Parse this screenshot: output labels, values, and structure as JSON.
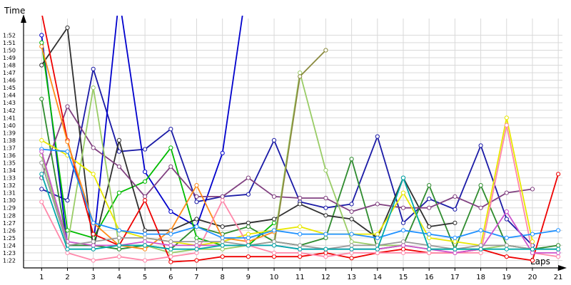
{
  "chart_data": {
    "type": "line",
    "xlabel": "Laps",
    "ylabel": "Time",
    "xlim": [
      0.3,
      21.3
    ],
    "ylim": [
      81.0,
      114.6
    ],
    "grid": true,
    "x_ticks": [
      "1",
      "2",
      "3",
      "4",
      "5",
      "6",
      "7",
      "8",
      "9",
      "10",
      "11",
      "12",
      "13",
      "14",
      "15",
      "16",
      "17",
      "18",
      "19",
      "20",
      "21"
    ],
    "y_ticks": [
      {
        "v": 82,
        "label": "1:22"
      },
      {
        "v": 83,
        "label": "1:23"
      },
      {
        "v": 84,
        "label": "1:24"
      },
      {
        "v": 85,
        "label": "1:25"
      },
      {
        "v": 86,
        "label": "1:26"
      },
      {
        "v": 87,
        "label": "1:27"
      },
      {
        "v": 88,
        "label": "1:28"
      },
      {
        "v": 89,
        "label": "1:29"
      },
      {
        "v": 90,
        "label": "1:30"
      },
      {
        "v": 91,
        "label": "1:31"
      },
      {
        "v": 92,
        "label": "1:32"
      },
      {
        "v": 93,
        "label": "1:33"
      },
      {
        "v": 94,
        "label": "1:34"
      },
      {
        "v": 95,
        "label": "1:35"
      },
      {
        "v": 96,
        "label": "1:36"
      },
      {
        "v": 97,
        "label": "1:37"
      },
      {
        "v": 98,
        "label": "1:38"
      },
      {
        "v": 99,
        "label": "1:39"
      },
      {
        "v": 100,
        "label": "1:40"
      },
      {
        "v": 101,
        "label": "1:41"
      },
      {
        "v": 102,
        "label": "1:42"
      },
      {
        "v": 103,
        "label": "1:43"
      },
      {
        "v": 104,
        "label": "1:44"
      },
      {
        "v": 105,
        "label": "1:45"
      },
      {
        "v": 106,
        "label": "1:46"
      },
      {
        "v": 107,
        "label": "1:47"
      },
      {
        "v": 108,
        "label": "1:48"
      },
      {
        "v": 109,
        "label": "1:49"
      },
      {
        "v": 110,
        "label": "1:50"
      },
      {
        "v": 111,
        "label": "1:51"
      },
      {
        "v": 112,
        "label": "1:52"
      }
    ],
    "series": [
      {
        "color": "#1a1aa6",
        "x": [
          1,
          2,
          3,
          4,
          5,
          6,
          7,
          8,
          9,
          10,
          11,
          12,
          13,
          14,
          15,
          16,
          17,
          18,
          19,
          20
        ],
        "y": [
          91.5,
          90,
          107.5,
          96.5,
          96.8,
          99.5,
          89.8,
          90.5,
          90.8,
          98,
          89.8,
          89,
          89.5,
          98.5,
          87,
          90.2,
          88.8,
          97.3,
          87.5,
          84
        ]
      },
      {
        "color": "#0000cc",
        "x": [
          1,
          2,
          3,
          4,
          5,
          6,
          7,
          8,
          9
        ],
        "y": [
          112,
          84,
          84,
          117,
          93.8,
          88.5,
          86.5,
          96.3,
          120
        ]
      },
      {
        "color": "#00bb00",
        "x": [
          1,
          2,
          3,
          4,
          5,
          6,
          7,
          8,
          9,
          10
        ],
        "y": [
          111,
          86,
          85,
          91,
          92.5,
          97,
          85,
          84,
          84,
          87
        ]
      },
      {
        "color": "#2e8b2e",
        "x": [
          1,
          2,
          3,
          4,
          5,
          6,
          7,
          8,
          9,
          10,
          11,
          12,
          13,
          14,
          15,
          16,
          17,
          18,
          19,
          20,
          21
        ],
        "y": [
          103.5,
          84,
          84,
          83.5,
          84,
          83.5,
          86.5,
          85.5,
          86.5,
          84.5,
          84,
          85,
          95.5,
          83.5,
          84,
          92,
          83.5,
          92,
          84,
          83.5,
          84
        ]
      },
      {
        "color": "#2f2f2f",
        "x": [
          1,
          2,
          3,
          4,
          5,
          6,
          7,
          8,
          9,
          10,
          11,
          12,
          13,
          14,
          15,
          16,
          17
        ],
        "y": [
          108,
          113,
          83.5,
          98,
          86,
          86,
          87.5,
          86.5,
          87,
          87.5,
          89.5,
          88,
          87.5,
          85,
          93,
          86.5,
          87
        ]
      },
      {
        "color": "#804080",
        "x": [
          1,
          2,
          3,
          4,
          5,
          6,
          7,
          8,
          9,
          10,
          11,
          12,
          13,
          14,
          15,
          16,
          17,
          18,
          19,
          20
        ],
        "y": [
          93,
          102.5,
          97,
          94.5,
          90.5,
          94.5,
          90.5,
          90.5,
          93,
          90.5,
          90.3,
          90.3,
          88.5,
          89.5,
          89,
          89,
          90.5,
          89,
          91,
          91.5
        ]
      },
      {
        "color": "#99cc66",
        "x": [
          1,
          2,
          3,
          4,
          5,
          6,
          7,
          8,
          9,
          10,
          11,
          12,
          13,
          14,
          15,
          16,
          17,
          18,
          19,
          20
        ],
        "y": [
          96,
          84,
          105,
          84,
          84,
          83,
          83.5,
          83.5,
          84,
          84.5,
          107,
          94,
          84.5,
          84,
          84,
          83.5,
          83.5,
          83.5,
          84,
          83.5
        ]
      },
      {
        "color": "#8a8a3e",
        "x": [
          10,
          11,
          12
        ],
        "y": [
          84,
          106.5,
          110
        ]
      },
      {
        "color": "#e8e800",
        "x": [
          1,
          2,
          3,
          4,
          5,
          6,
          7,
          8,
          9,
          10,
          11,
          12,
          13,
          14,
          15,
          16,
          17,
          18,
          19,
          20
        ],
        "y": [
          98,
          96,
          93.5,
          86,
          85,
          84.5,
          84,
          84.5,
          85.5,
          86,
          86.5,
          85.5,
          85.5,
          85.5,
          91,
          85,
          84.5,
          84,
          101,
          84.5
        ]
      },
      {
        "color": "#ee0000",
        "x": [
          1,
          2,
          3,
          4,
          5,
          6,
          7,
          8,
          9,
          10,
          11,
          12,
          13,
          14,
          15,
          16,
          17,
          18,
          19,
          20,
          21
        ],
        "y": [
          115,
          98,
          85.5,
          84,
          90,
          81.8,
          82,
          82.5,
          82.5,
          82.5,
          82.5,
          83,
          82.3,
          83,
          83.5,
          83,
          83,
          83.5,
          82.5,
          82,
          93.5
        ]
      },
      {
        "color": "#ff8c1a",
        "x": [
          1,
          2,
          3,
          4,
          5,
          6,
          7,
          8,
          9,
          10
        ],
        "y": [
          110.5,
          97.8,
          87,
          84,
          83.5,
          86,
          92,
          85,
          84.5,
          85.8
        ]
      },
      {
        "color": "#ff88aa",
        "x": [
          1,
          2,
          3,
          4,
          5,
          6,
          7,
          8,
          9,
          10,
          11,
          12,
          13,
          14,
          15,
          16,
          17,
          18,
          19,
          20,
          21
        ],
        "y": [
          89.8,
          83,
          82,
          82.5,
          82,
          82.5,
          83,
          90,
          84,
          83,
          83,
          82.5,
          83,
          83,
          83,
          83,
          83,
          83,
          100,
          83,
          82.5
        ]
      },
      {
        "color": "#1e90ff",
        "x": [
          1,
          2,
          3,
          4,
          5,
          6,
          7,
          8,
          9,
          10,
          11,
          12,
          13,
          14,
          15,
          16,
          17,
          18,
          19,
          20,
          21
        ],
        "y": [
          96.8,
          96.5,
          87,
          86,
          85.5,
          85.5,
          86.5,
          85,
          85,
          86,
          85.5,
          85.5,
          85.5,
          85,
          86,
          85.5,
          85,
          86,
          85,
          85.5,
          86
        ]
      },
      {
        "color": "#cc55cc",
        "x": [
          1,
          2,
          3,
          4,
          5,
          6,
          7,
          8,
          9,
          10,
          11,
          12,
          13,
          14,
          15,
          16,
          17,
          18,
          19,
          20,
          21
        ],
        "y": [
          96.5,
          84.5,
          84,
          84,
          84.5,
          84,
          84,
          84,
          84,
          84,
          83.5,
          83.5,
          83.5,
          83.5,
          84,
          83.5,
          83,
          83.5,
          88.5,
          83,
          83
        ]
      },
      {
        "color": "#999999",
        "x": [
          1,
          2,
          3,
          4,
          5,
          6,
          7,
          8,
          9,
          10,
          11,
          12,
          13,
          14,
          15,
          16,
          17,
          18,
          19,
          20,
          21
        ],
        "y": [
          95,
          84,
          84.5,
          85,
          85,
          84.5,
          84.5,
          84.5,
          84,
          84.5,
          84,
          83.5,
          84,
          84,
          84.5,
          84,
          83.5,
          84,
          84,
          83.5,
          83.5
        ]
      },
      {
        "color": "#00aaaa",
        "x": [
          1,
          2,
          3,
          4,
          5,
          6,
          7,
          8,
          9,
          10,
          11,
          12,
          13,
          14,
          15,
          16,
          17,
          18,
          19,
          20,
          21
        ],
        "y": [
          93.5,
          83.5,
          83.5,
          84,
          84,
          83.5,
          83.5,
          84,
          84,
          84,
          83.5,
          83.5,
          83.5,
          83.5,
          93,
          83.5,
          83.5,
          83.5,
          83.5,
          83.5,
          83.5
        ]
      }
    ]
  }
}
